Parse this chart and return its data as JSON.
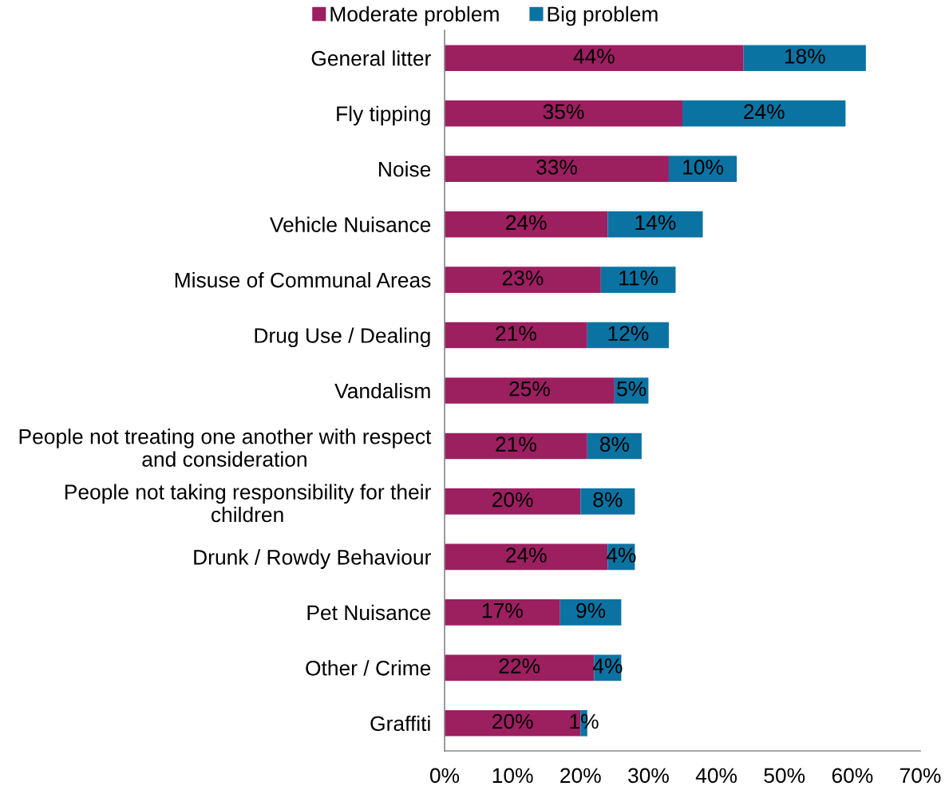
{
  "chart_data": {
    "type": "bar",
    "orientation": "horizontal",
    "stacked": true,
    "categories": [
      "General litter",
      "Fly tipping",
      "Noise",
      "Vehicle Nuisance",
      "Misuse of Communal Areas",
      "Drug Use / Dealing",
      "Vandalism",
      "People not treating one another with respect and consideration",
      "People not taking responsibility for their children",
      "Drunk / Rowdy Behaviour",
      "Pet Nuisance",
      "Other / Crime",
      "Graffiti"
    ],
    "series": [
      {
        "name": "Moderate problem",
        "color": "#9c1f60",
        "values": [
          44,
          35,
          33,
          24,
          23,
          21,
          25,
          21,
          20,
          24,
          17,
          22,
          20
        ],
        "value_labels": [
          "44%",
          "35%",
          "33%",
          "24%",
          "23%",
          "21%",
          "25%",
          "21%",
          "20%",
          "24%",
          "17%",
          "22%",
          "20%"
        ]
      },
      {
        "name": "Big problem",
        "color": "#0b73a2",
        "values": [
          18,
          24,
          10,
          14,
          11,
          12,
          5,
          8,
          8,
          4,
          9,
          4,
          1
        ],
        "value_labels": [
          "18%",
          "24%",
          "10%",
          "14%",
          "11%",
          "12%",
          "5%",
          "8%",
          "8%",
          "4%",
          "9%",
          "4%",
          "1%"
        ]
      }
    ],
    "xlim": [
      0,
      70
    ],
    "xticks": [
      {
        "value": 0,
        "label": "0%"
      },
      {
        "value": 10,
        "label": "10%"
      },
      {
        "value": 20,
        "label": "20%"
      },
      {
        "value": 30,
        "label": "30%"
      },
      {
        "value": 40,
        "label": "40%"
      },
      {
        "value": 50,
        "label": "50%"
      },
      {
        "value": 60,
        "label": "60%"
      },
      {
        "value": 70,
        "label": "70%"
      }
    ],
    "legend": "top",
    "grid": false
  }
}
